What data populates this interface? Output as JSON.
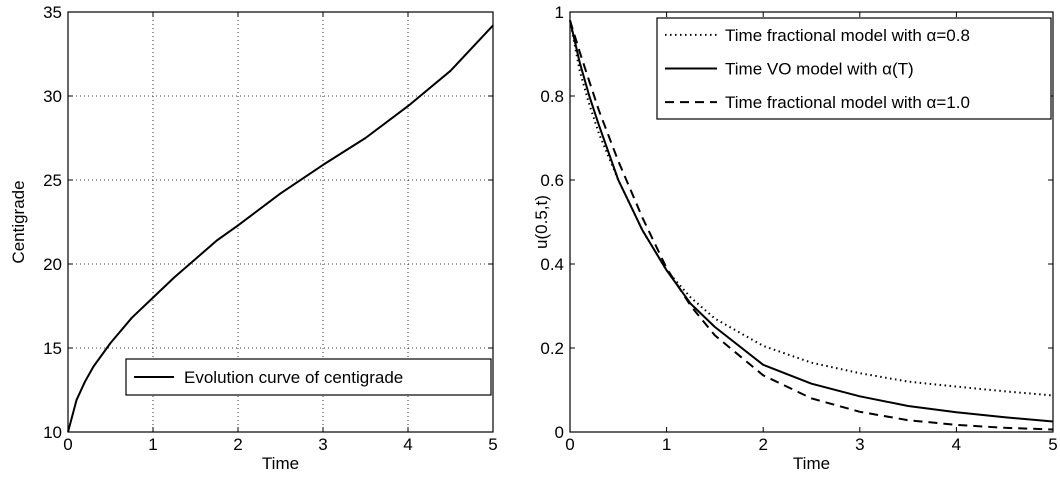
{
  "chart_data": [
    {
      "type": "line",
      "title": "",
      "xlabel": "Time",
      "ylabel": "Centigrade",
      "xlim": [
        0,
        5
      ],
      "ylim": [
        10,
        35
      ],
      "xticks": [
        0,
        1,
        2,
        3,
        4,
        5
      ],
      "yticks": [
        10,
        15,
        20,
        25,
        30,
        35
      ],
      "xtick_labels": [
        "0",
        "1",
        "2",
        "3",
        "4",
        "5"
      ],
      "ytick_labels": [
        "10",
        "15",
        "20",
        "25",
        "30",
        "35"
      ],
      "grid": true,
      "legend_position": "bottom-right",
      "series": [
        {
          "name": "Evolution curve of centigrade",
          "style": "solid",
          "color": "#000000",
          "x": [
            0,
            0.1,
            0.2,
            0.3,
            0.5,
            0.75,
            1.0,
            1.25,
            1.5,
            1.75,
            2.0,
            2.5,
            3.0,
            3.5,
            4.0,
            4.5,
            5.0
          ],
          "y": [
            10.0,
            11.9,
            13.0,
            13.9,
            15.3,
            16.8,
            18.0,
            19.2,
            20.3,
            21.4,
            22.3,
            24.2,
            25.9,
            27.5,
            29.4,
            31.5,
            34.2
          ]
        }
      ]
    },
    {
      "type": "line",
      "title": "",
      "xlabel": "Time",
      "ylabel": "u(0.5,t)",
      "xlim": [
        0,
        5
      ],
      "ylim": [
        0,
        1
      ],
      "xticks": [
        0,
        1,
        2,
        3,
        4,
        5
      ],
      "yticks": [
        0,
        0.2,
        0.4,
        0.6,
        0.8,
        1
      ],
      "xtick_labels": [
        "0",
        "1",
        "2",
        "3",
        "4",
        "5"
      ],
      "ytick_labels": [
        "0",
        "0.2",
        "0.4",
        "0.6",
        "0.8",
        "1"
      ],
      "grid": false,
      "legend_position": "top-right",
      "series": [
        {
          "name": "Time fractional model with α=0.8",
          "style": "dotted",
          "color": "#000000",
          "x": [
            0,
            0.1,
            0.2,
            0.3,
            0.5,
            0.75,
            1.0,
            1.25,
            1.5,
            2.0,
            2.5,
            3.0,
            3.5,
            4.0,
            4.5,
            5.0
          ],
          "y": [
            0.98,
            0.86,
            0.78,
            0.71,
            0.6,
            0.48,
            0.385,
            0.32,
            0.27,
            0.205,
            0.165,
            0.14,
            0.12,
            0.108,
            0.097,
            0.087
          ]
        },
        {
          "name": "Time VO model with α(T)",
          "style": "solid",
          "color": "#000000",
          "x": [
            0,
            0.1,
            0.2,
            0.3,
            0.5,
            0.75,
            1.0,
            1.25,
            1.5,
            2.0,
            2.5,
            3.0,
            3.5,
            4.0,
            4.5,
            5.0
          ],
          "y": [
            0.98,
            0.88,
            0.8,
            0.73,
            0.6,
            0.48,
            0.385,
            0.305,
            0.25,
            0.16,
            0.115,
            0.085,
            0.062,
            0.047,
            0.035,
            0.025
          ]
        },
        {
          "name": "Time fractional model with α=1.0",
          "style": "dashed",
          "color": "#000000",
          "x": [
            0,
            0.1,
            0.2,
            0.3,
            0.5,
            0.75,
            1.0,
            1.25,
            1.5,
            2.0,
            2.5,
            3.0,
            3.5,
            4.0,
            4.5,
            5.0
          ],
          "y": [
            0.98,
            0.905,
            0.835,
            0.765,
            0.645,
            0.51,
            0.39,
            0.3,
            0.23,
            0.135,
            0.08,
            0.048,
            0.028,
            0.017,
            0.01,
            0.006
          ]
        }
      ]
    }
  ]
}
